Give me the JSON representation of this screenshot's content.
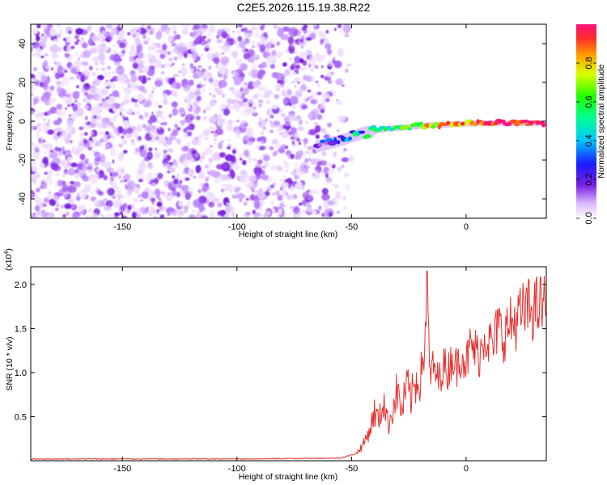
{
  "title": "C2E5.2026.115.19.38.R22",
  "chart_data": [
    {
      "type": "heatmap",
      "name": "spectrogram",
      "xlabel": "Height of straight line (km)",
      "ylabel": "Frequency (Hz)",
      "xlim": [
        -190,
        35
      ],
      "ylim": [
        -50,
        50
      ],
      "x_ticks": [
        -150,
        -100,
        -50,
        0
      ],
      "y_ticks": [
        -40,
        -20,
        0,
        20,
        40
      ],
      "x_tick_labels": [
        "-150",
        "-100",
        "-50",
        "0"
      ],
      "y_tick_labels": [
        "-40",
        "-20",
        "0",
        "20",
        "40"
      ],
      "noise_region_x": [
        -190,
        -58
      ],
      "signal_track": {
        "x": [
          -65,
          -60,
          -55,
          -50,
          -45,
          -40,
          -35,
          -30,
          -25,
          -20,
          -15,
          -10,
          -5,
          0,
          5,
          10,
          15,
          20,
          25,
          30,
          34
        ],
        "frequency": [
          -13,
          -11.5,
          -10,
          -8,
          -6,
          -5,
          -4,
          -3.5,
          -3,
          -2.5,
          -2,
          -1.8,
          -1.5,
          -1.2,
          -1,
          -1,
          -1,
          -1,
          -1,
          -1,
          -1
        ],
        "amplitude": [
          0.2,
          0.25,
          0.3,
          0.38,
          0.42,
          0.48,
          0.5,
          0.55,
          0.58,
          0.7,
          0.8,
          0.85,
          0.9,
          0.9,
          0.92,
          0.93,
          0.94,
          0.95,
          0.95,
          0.96,
          0.96
        ]
      },
      "colorbar": {
        "label": "Normalized spectral amplitude",
        "range": [
          0,
          1
        ],
        "ticks": [
          0.0,
          0.2,
          0.4,
          0.6,
          0.8
        ],
        "tick_labels": [
          "0.0",
          "0.2",
          "0.4",
          "0.6",
          "0.8"
        ]
      }
    },
    {
      "type": "line",
      "name": "snr",
      "xlabel": "Height of straight line (km)",
      "ylabel": "SNR (10 * v/v)",
      "scale_note_base": "(x10",
      "scale_note_exp": "4",
      "scale_note_close": ")",
      "xlim": [
        -190,
        35
      ],
      "ylim": [
        0,
        2.2
      ],
      "x_ticks": [
        -150,
        -100,
        -50,
        0
      ],
      "y_ticks": [
        0.5,
        1.0,
        1.5,
        2.0
      ],
      "x_tick_labels": [
        "-150",
        "-100",
        "-50",
        "0"
      ],
      "y_tick_labels": [
        "0.5",
        "1.0",
        "1.5",
        "2.0"
      ],
      "color": "#e8302e",
      "series": [
        {
          "name": "SNR",
          "x": [
            -190,
            -150,
            -100,
            -55,
            -48,
            -45,
            -42,
            -40,
            -38,
            -36,
            -34,
            -32,
            -30,
            -28,
            -26,
            -24,
            -22,
            -20,
            -18,
            -17,
            -16,
            -14,
            -12,
            -10,
            -8,
            -6,
            -4,
            -2,
            0,
            2,
            4,
            6,
            8,
            10,
            12,
            14,
            16,
            18,
            20,
            22,
            24,
            26,
            28,
            30,
            32,
            35
          ],
          "y": [
            0.02,
            0.02,
            0.02,
            0.03,
            0.08,
            0.18,
            0.35,
            0.55,
            0.45,
            0.7,
            0.4,
            0.6,
            0.8,
            0.55,
            0.85,
            0.7,
            0.9,
            0.95,
            1.3,
            2.15,
            1.0,
            1.05,
            0.9,
            1.1,
            1.0,
            1.2,
            1.05,
            1.25,
            1.1,
            1.3,
            1.25,
            1.2,
            1.45,
            1.35,
            1.3,
            1.55,
            1.4,
            1.5,
            1.55,
            1.6,
            1.65,
            1.7,
            1.72,
            1.72,
            1.75,
            1.76
          ]
        }
      ]
    }
  ]
}
